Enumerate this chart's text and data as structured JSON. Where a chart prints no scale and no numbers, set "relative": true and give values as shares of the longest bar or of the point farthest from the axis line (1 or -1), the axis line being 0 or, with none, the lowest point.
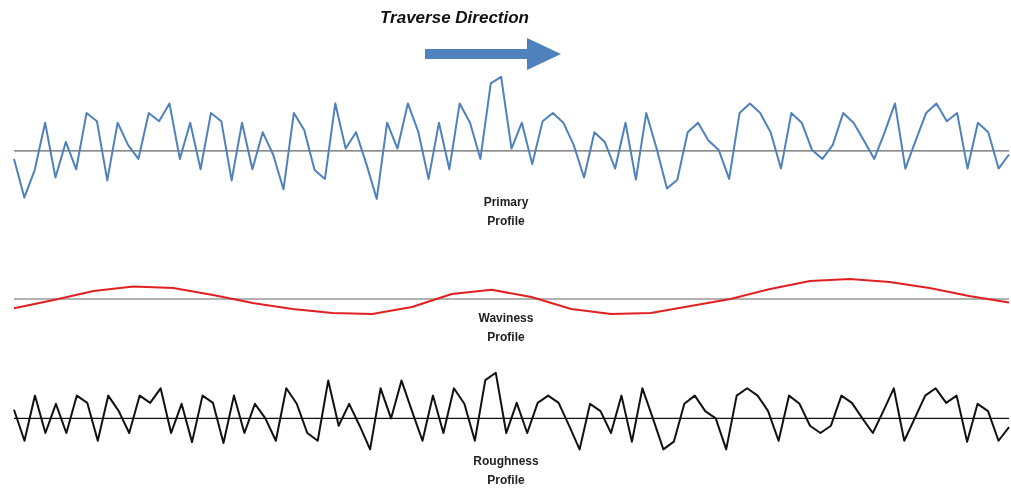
{
  "chart_data": [
    {
      "type": "line",
      "title": "Traverse Direction",
      "relative": true,
      "annotations": [
        "Primary Profile"
      ],
      "legend": false,
      "tick_labels": false,
      "marker": "none",
      "line_style": "solid",
      "categories": [
        null,
        null,
        null,
        null,
        null,
        null,
        null,
        null,
        null,
        null,
        null,
        null,
        null,
        null,
        null,
        null,
        null,
        null,
        null,
        null,
        null,
        null,
        null,
        null,
        null,
        null,
        null,
        null,
        null,
        null,
        null,
        null,
        null,
        null,
        null,
        null,
        null,
        null,
        null,
        null,
        null,
        null,
        null,
        null,
        null,
        null,
        null,
        null,
        null,
        null,
        null,
        null,
        null,
        null,
        null,
        null,
        null,
        null,
        null,
        null,
        null,
        null,
        null,
        null,
        null,
        null,
        null,
        null,
        null,
        null,
        null,
        null,
        null,
        null,
        null,
        null,
        null,
        null,
        null,
        null,
        null,
        null,
        null,
        null,
        null,
        null,
        null,
        null,
        null,
        null,
        null,
        null,
        null,
        null,
        null,
        null,
        null
      ],
      "series": [
        {
          "color": "#4f81bd",
          "values": [
            -0.11,
            -0.63,
            -0.26,
            0.38,
            -0.36,
            0.12,
            -0.25,
            0.51,
            0.4,
            -0.4,
            0.38,
            0.08,
            -0.11,
            0.51,
            0.4,
            0.64,
            -0.11,
            0.38,
            -0.25,
            0.51,
            0.4,
            -0.4,
            0.38,
            -0.25,
            0.25,
            -0.05,
            -0.52,
            0.51,
            0.28,
            -0.26,
            -0.38,
            0.64,
            0.03,
            0.25,
            -0.18,
            -0.65,
            0.38,
            0.03,
            0.64,
            0.26,
            -0.38,
            0.38,
            -0.25,
            0.64,
            0.38,
            -0.11,
            0.91,
            1,
            0.03,
            0.38,
            -0.18,
            0.4,
            0.51,
            0.38,
            0.08,
            -0.36,
            0.25,
            0.12,
            -0.24,
            0.38,
            -0.39,
            0.51,
            0.03,
            -0.51,
            -0.39,
            0.25,
            0.38,
            0.14,
            0.01,
            -0.38,
            0.51,
            0.64,
            0.51,
            0.25,
            -0.24,
            0.51,
            0.38,
            0.01,
            -0.11,
            0.08,
            0.51,
            0.38,
            0.14,
            -0.11,
            0.25,
            0.64,
            -0.24,
            0.14,
            0.51,
            0.64,
            0.4,
            0.51,
            -0.24,
            0.38,
            0.25,
            -0.24,
            -0.05
          ]
        }
      ]
    },
    {
      "type": "line",
      "relative": true,
      "annotations": [
        "Waviness Profile"
      ],
      "legend": false,
      "tick_labels": false,
      "marker": "none",
      "line_style": "solid",
      "categories": [
        null,
        null,
        null,
        null,
        null,
        null,
        null,
        null,
        null,
        null,
        null,
        null,
        null,
        null,
        null,
        null,
        null,
        null,
        null,
        null,
        null,
        null,
        null,
        null,
        null,
        null
      ],
      "series": [
        {
          "color": "#e02020",
          "values": [
            -0.46,
            -0.05,
            0.4,
            0.62,
            0.55,
            0.2,
            -0.2,
            -0.5,
            -0.7,
            -0.75,
            -0.4,
            0.25,
            0.46,
            0.1,
            -0.5,
            -0.75,
            -0.7,
            -0.35,
            0,
            0.5,
            0.9,
            1,
            0.85,
            0.55,
            0.15,
            -0.17
          ]
        }
      ]
    },
    {
      "type": "line",
      "relative": true,
      "annotations": [
        "Roughness Profile"
      ],
      "legend": false,
      "tick_labels": false,
      "marker": "none",
      "line_style": "solid",
      "categories": [
        null,
        null,
        null,
        null,
        null,
        null,
        null,
        null,
        null,
        null,
        null,
        null,
        null,
        null,
        null,
        null,
        null,
        null,
        null,
        null,
        null,
        null,
        null,
        null,
        null,
        null,
        null,
        null,
        null,
        null,
        null,
        null,
        null,
        null,
        null,
        null,
        null,
        null,
        null,
        null,
        null,
        null,
        null,
        null,
        null,
        null,
        null,
        null,
        null,
        null,
        null,
        null,
        null,
        null,
        null,
        null,
        null,
        null,
        null,
        null,
        null,
        null,
        null,
        null,
        null,
        null,
        null,
        null,
        null,
        null,
        null,
        null,
        null,
        null,
        null,
        null,
        null,
        null,
        null,
        null,
        null,
        null,
        null,
        null,
        null,
        null,
        null,
        null,
        null,
        null,
        null,
        null,
        null,
        null,
        null,
        null
      ],
      "series": [
        {
          "color": "#111111",
          "values": [
            0.19,
            -0.49,
            0.5,
            -0.32,
            0.32,
            -0.32,
            0.5,
            0.34,
            -0.49,
            0.5,
            0.16,
            -0.32,
            0.5,
            0.34,
            0.66,
            -0.32,
            0.32,
            -0.52,
            0.5,
            0.34,
            -0.54,
            0.5,
            -0.32,
            0.32,
            0,
            -0.49,
            0.66,
            0.32,
            -0.32,
            -0.49,
            0.83,
            -0.16,
            0.32,
            -0.16,
            -0.68,
            0.66,
            0,
            0.83,
            0.16,
            -0.49,
            0.5,
            -0.32,
            0.66,
            0.32,
            -0.49,
            0.84,
            1,
            -0.32,
            0.34,
            -0.32,
            0.34,
            0.5,
            0.34,
            -0.16,
            -0.68,
            0.32,
            0.16,
            -0.32,
            0.5,
            -0.51,
            0.66,
            0,
            -0.68,
            -0.51,
            0.32,
            0.5,
            0.16,
            0,
            -0.68,
            0.5,
            0.66,
            0.5,
            0.16,
            -0.49,
            0.5,
            0.32,
            -0.16,
            -0.32,
            -0.16,
            0.5,
            0.34,
            0,
            -0.32,
            0.16,
            0.66,
            -0.49,
            0,
            0.5,
            0.66,
            0.34,
            0.5,
            -0.51,
            0.32,
            0.16,
            -0.49,
            -0.19
          ]
        }
      ]
    }
  ]
}
